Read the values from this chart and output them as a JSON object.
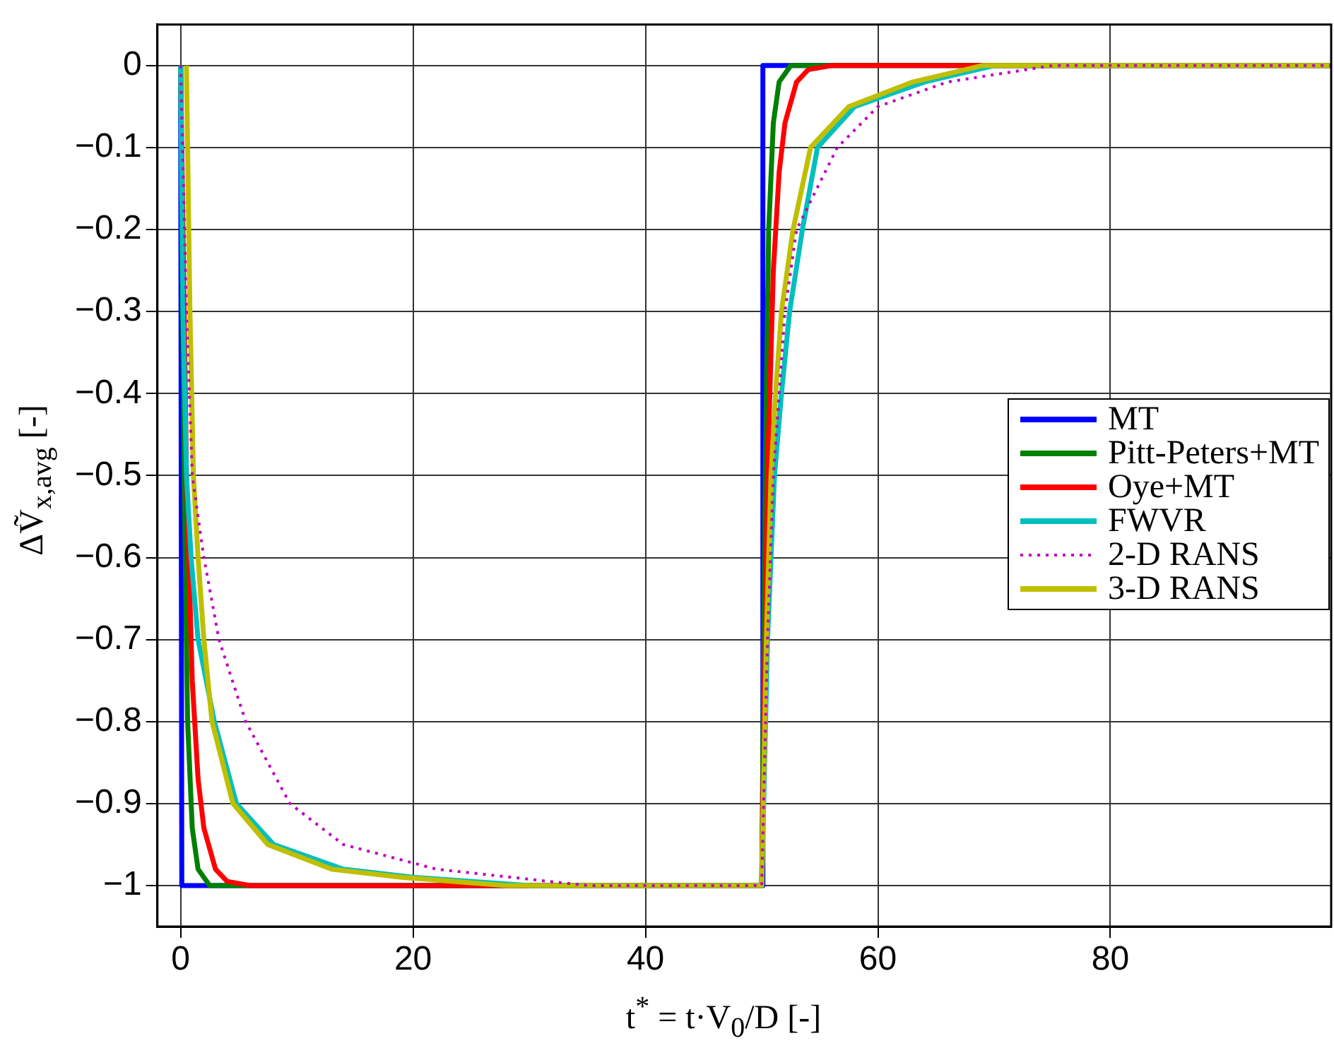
{
  "chart_data": {
    "type": "line",
    "xlabel": "t$^{*}$ = t·V$_{0}$/D [-]",
    "ylabel": "ΔṼ$_{x,avg}$ [-]",
    "xlim": [
      -2,
      99
    ],
    "ylim": [
      -1.05,
      0.05
    ],
    "xticks": [
      0,
      20,
      40,
      60,
      80
    ],
    "yticks": [
      {
        "value": 0,
        "label": "0"
      },
      {
        "value": -0.1,
        "label": "−0.1"
      },
      {
        "value": -0.2,
        "label": "−0.2"
      },
      {
        "value": -0.3,
        "label": "−0.3"
      },
      {
        "value": -0.4,
        "label": "−0.4"
      },
      {
        "value": -0.5,
        "label": "−0.5"
      },
      {
        "value": -0.6,
        "label": "−0.6"
      },
      {
        "value": -0.7,
        "label": "−0.7"
      },
      {
        "value": -0.8,
        "label": "−0.8"
      },
      {
        "value": -0.9,
        "label": "−0.9"
      },
      {
        "value": -1,
        "label": "−1"
      }
    ],
    "grid": true,
    "legend": "right",
    "series": [
      {
        "name": "MT",
        "color": "#0000ff",
        "x": [
          0,
          0.1,
          50,
          50.1,
          99
        ],
        "values": [
          0,
          -1,
          -1,
          0,
          0
        ]
      },
      {
        "name": "Pitt-Peters+MT",
        "color": "#008000",
        "x": [
          0,
          0.3,
          0.6,
          1,
          1.5,
          2.5,
          50,
          50.3,
          50.6,
          51,
          51.5,
          52.5,
          99
        ],
        "values": [
          0,
          -0.5,
          -0.8,
          -0.93,
          -0.98,
          -1,
          -1,
          -0.5,
          -0.2,
          -0.07,
          -0.02,
          0,
          0
        ]
      },
      {
        "name": "Oye+MT",
        "color": "#ff0000",
        "x": [
          0,
          0.5,
          1,
          1.5,
          2,
          3,
          4,
          6,
          50,
          50.5,
          51,
          51.5,
          52,
          53,
          54,
          56,
          99
        ],
        "values": [
          0,
          -0.5,
          -0.75,
          -0.87,
          -0.93,
          -0.98,
          -0.995,
          -1,
          -1,
          -0.5,
          -0.25,
          -0.13,
          -0.07,
          -0.02,
          -0.005,
          0,
          0
        ]
      },
      {
        "name": "FWVR",
        "color": "#00bfbf",
        "x": [
          0,
          0.2,
          0.5,
          0.9,
          1.5,
          2.9,
          4.8,
          8,
          14,
          20,
          30,
          50,
          50.5,
          51.1,
          51.7,
          52.4,
          53.5,
          54.8,
          58,
          64,
          70,
          99
        ],
        "values": [
          0,
          -0.3,
          -0.5,
          -0.6,
          -0.7,
          -0.8,
          -0.9,
          -0.95,
          -0.98,
          -0.99,
          -1,
          -1,
          -0.7,
          -0.5,
          -0.4,
          -0.3,
          -0.2,
          -0.1,
          -0.05,
          -0.02,
          0,
          0
        ]
      },
      {
        "name": "2-D RANS",
        "color": "#bf00bf",
        "line_style": "dotted",
        "x": [
          0,
          0.5,
          1,
          2,
          3.3,
          5.6,
          9.4,
          14,
          22,
          35,
          50,
          50.5,
          51,
          52,
          53,
          56.5,
          60,
          66,
          75,
          99
        ],
        "values": [
          0,
          -0.3,
          -0.5,
          -0.6,
          -0.7,
          -0.8,
          -0.9,
          -0.95,
          -0.98,
          -1,
          -1,
          -0.7,
          -0.5,
          -0.3,
          -0.2,
          -0.1,
          -0.05,
          -0.02,
          0,
          0
        ]
      },
      {
        "name": "3-D RANS",
        "color": "#bfbf00",
        "x": [
          0.5,
          0.8,
          1.1,
          1.5,
          2,
          2.7,
          4.5,
          7.5,
          13,
          19,
          28,
          50,
          50.4,
          50.8,
          51.2,
          51.7,
          52.7,
          54.2,
          57.5,
          63,
          69,
          99
        ],
        "values": [
          0,
          -0.3,
          -0.5,
          -0.6,
          -0.7,
          -0.8,
          -0.9,
          -0.95,
          -0.98,
          -0.99,
          -1,
          -1,
          -0.7,
          -0.5,
          -0.4,
          -0.3,
          -0.2,
          -0.1,
          -0.05,
          -0.02,
          0,
          0
        ]
      }
    ]
  }
}
